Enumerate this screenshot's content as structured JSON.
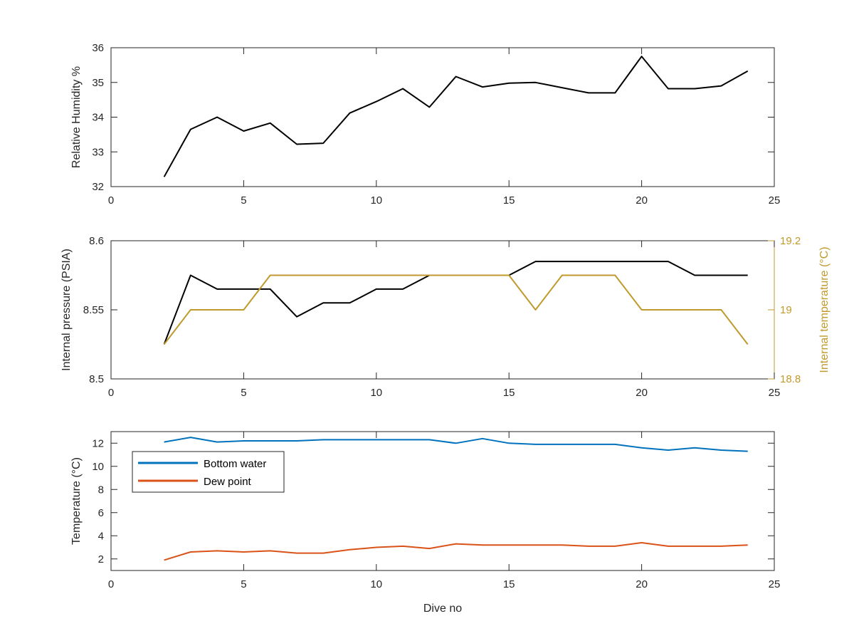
{
  "chart_data": [
    {
      "type": "line",
      "title": "",
      "xlabel": "",
      "ylabel": "Relative Humidity %",
      "xlim": [
        0,
        25
      ],
      "ylim": [
        32,
        36
      ],
      "x_ticks": [
        "0",
        "5",
        "10",
        "15",
        "20",
        "25"
      ],
      "y_ticks": [
        "32",
        "33",
        "34",
        "35",
        "36"
      ],
      "grid": false,
      "series": [
        {
          "color": "#000000",
          "x": [
            2,
            3,
            4,
            5,
            6,
            7,
            8,
            9,
            10,
            11,
            12,
            13,
            14,
            15,
            16,
            17,
            18,
            19,
            20,
            21,
            22,
            23,
            24
          ],
          "values": [
            32.28,
            33.65,
            34.0,
            33.6,
            33.83,
            33.22,
            33.25,
            34.12,
            34.45,
            34.82,
            34.29,
            35.17,
            34.87,
            34.98,
            35.0,
            34.85,
            34.7,
            34.7,
            35.75,
            34.82,
            34.82,
            34.9,
            35.33
          ]
        }
      ]
    },
    {
      "type": "line",
      "title": "",
      "xlabel": "",
      "ylabel": "Internal pressure (PSIA)",
      "ylabel_right": "Internal temperature (°C)",
      "xlim": [
        0,
        25
      ],
      "ylim": [
        8.5,
        8.6
      ],
      "ylim_right": [
        18.8,
        19.2
      ],
      "x_ticks": [
        "0",
        "5",
        "10",
        "15",
        "20",
        "25"
      ],
      "y_ticks": [
        "8.5",
        "8.55",
        "8.6"
      ],
      "y_ticks_right": [
        "18.8",
        "19",
        "19.2"
      ],
      "right_axis_color": "#c09a2c",
      "grid": false,
      "series": [
        {
          "axis": "left",
          "color": "#000000",
          "x": [
            2,
            3,
            4,
            5,
            6,
            7,
            8,
            9,
            10,
            11,
            12,
            13,
            14,
            15,
            16,
            17,
            18,
            19,
            20,
            21,
            22,
            23,
            24
          ],
          "values": [
            8.525,
            8.575,
            8.565,
            8.565,
            8.565,
            8.545,
            8.555,
            8.555,
            8.565,
            8.565,
            8.575,
            8.575,
            8.575,
            8.575,
            8.585,
            8.585,
            8.585,
            8.585,
            8.585,
            8.585,
            8.575,
            8.575,
            8.575
          ]
        },
        {
          "axis": "right",
          "color": "#c09a2c",
          "x": [
            2,
            3,
            4,
            5,
            6,
            7,
            8,
            9,
            10,
            11,
            12,
            13,
            14,
            15,
            16,
            17,
            18,
            19,
            20,
            21,
            22,
            23,
            24
          ],
          "values": [
            18.9,
            19.0,
            19.0,
            19.0,
            19.1,
            19.1,
            19.1,
            19.1,
            19.1,
            19.1,
            19.1,
            19.1,
            19.1,
            19.1,
            19.0,
            19.1,
            19.1,
            19.1,
            19.0,
            19.0,
            19.0,
            19.0,
            18.9
          ]
        }
      ]
    },
    {
      "type": "line",
      "title": "",
      "xlabel": "Dive no",
      "ylabel": "Temperature (°C)",
      "xlim": [
        0,
        25
      ],
      "ylim": [
        1,
        13
      ],
      "x_ticks": [
        "0",
        "5",
        "10",
        "15",
        "20",
        "25"
      ],
      "y_ticks": [
        "2",
        "4",
        "6",
        "8",
        "10",
        "12"
      ],
      "grid": false,
      "legend_position": "top-left",
      "series": [
        {
          "name": "Bottom water",
          "color": "#0072bd",
          "x": [
            2,
            3,
            4,
            5,
            6,
            7,
            8,
            9,
            10,
            11,
            12,
            13,
            14,
            15,
            16,
            17,
            18,
            19,
            20,
            21,
            22,
            23,
            24
          ],
          "values": [
            12.1,
            12.5,
            12.1,
            12.2,
            12.2,
            12.2,
            12.3,
            12.3,
            12.3,
            12.3,
            12.3,
            12.0,
            12.4,
            12.0,
            11.9,
            11.9,
            11.9,
            11.9,
            11.6,
            11.4,
            11.6,
            11.4,
            11.3
          ]
        },
        {
          "name": "Dew point",
          "color": "#d95319",
          "x": [
            2,
            3,
            4,
            5,
            6,
            7,
            8,
            9,
            10,
            11,
            12,
            13,
            14,
            15,
            16,
            17,
            18,
            19,
            20,
            21,
            22,
            23,
            24
          ],
          "values": [
            1.9,
            2.6,
            2.7,
            2.6,
            2.7,
            2.5,
            2.5,
            2.8,
            3.0,
            3.1,
            2.9,
            3.3,
            3.2,
            3.2,
            3.2,
            3.2,
            3.1,
            3.1,
            3.4,
            3.1,
            3.1,
            3.1,
            3.2
          ]
        }
      ]
    }
  ]
}
